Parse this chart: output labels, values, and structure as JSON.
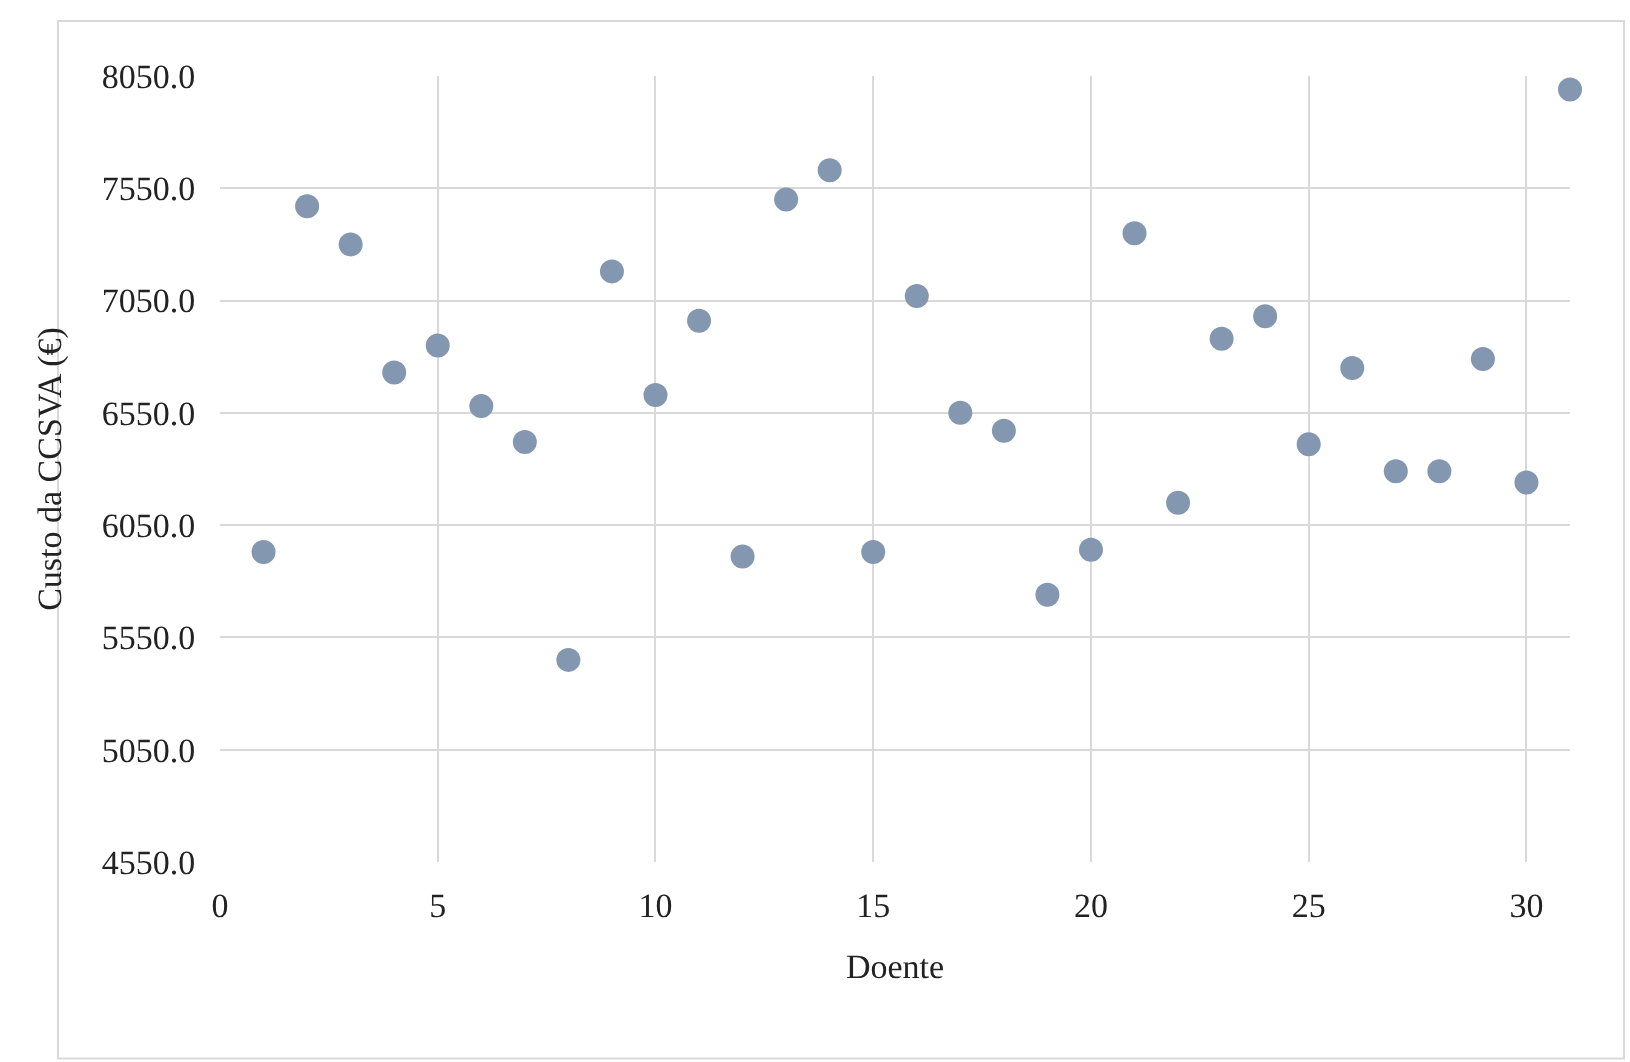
{
  "chart_data": {
    "type": "scatter",
    "xlabel": "Doente",
    "ylabel": "Custo da CCSVA (€)",
    "x": [
      1,
      2,
      3,
      4,
      5,
      6,
      7,
      8,
      9,
      10,
      11,
      12,
      13,
      14,
      15,
      16,
      17,
      18,
      19,
      20,
      21,
      22,
      23,
      24,
      25,
      26,
      27,
      28,
      29,
      30,
      31
    ],
    "series": [
      {
        "color": "#8497b0",
        "values": [
          5930,
          7470,
          7300,
          6730,
          6850,
          6580,
          6420,
          5450,
          7180,
          6630,
          6960,
          5910,
          7500,
          7630,
          5930,
          7070,
          6550,
          6470,
          5740,
          5940,
          7350,
          6150,
          6880,
          6980,
          6410,
          6750,
          6290,
          6290,
          6790,
          6240,
          7990
        ]
      }
    ],
    "xlim": [
      0,
      31
    ],
    "xticks": [
      0,
      5,
      10,
      15,
      20,
      25,
      30
    ],
    "ylim": [
      4550,
      8050
    ],
    "yticks": [
      {
        "value": 4550,
        "label": "4550.0"
      },
      {
        "value": 5050,
        "label": "5050.0"
      },
      {
        "value": 5550,
        "label": "5550.0"
      },
      {
        "value": 6050,
        "label": "6050.0"
      },
      {
        "value": 6550,
        "label": "6550.0"
      },
      {
        "value": 7050,
        "label": "7050.0"
      },
      {
        "value": 7550,
        "label": "7550.0"
      },
      {
        "value": 8050,
        "label": "8050.0"
      }
    ],
    "grid": true,
    "marker": "circle"
  }
}
